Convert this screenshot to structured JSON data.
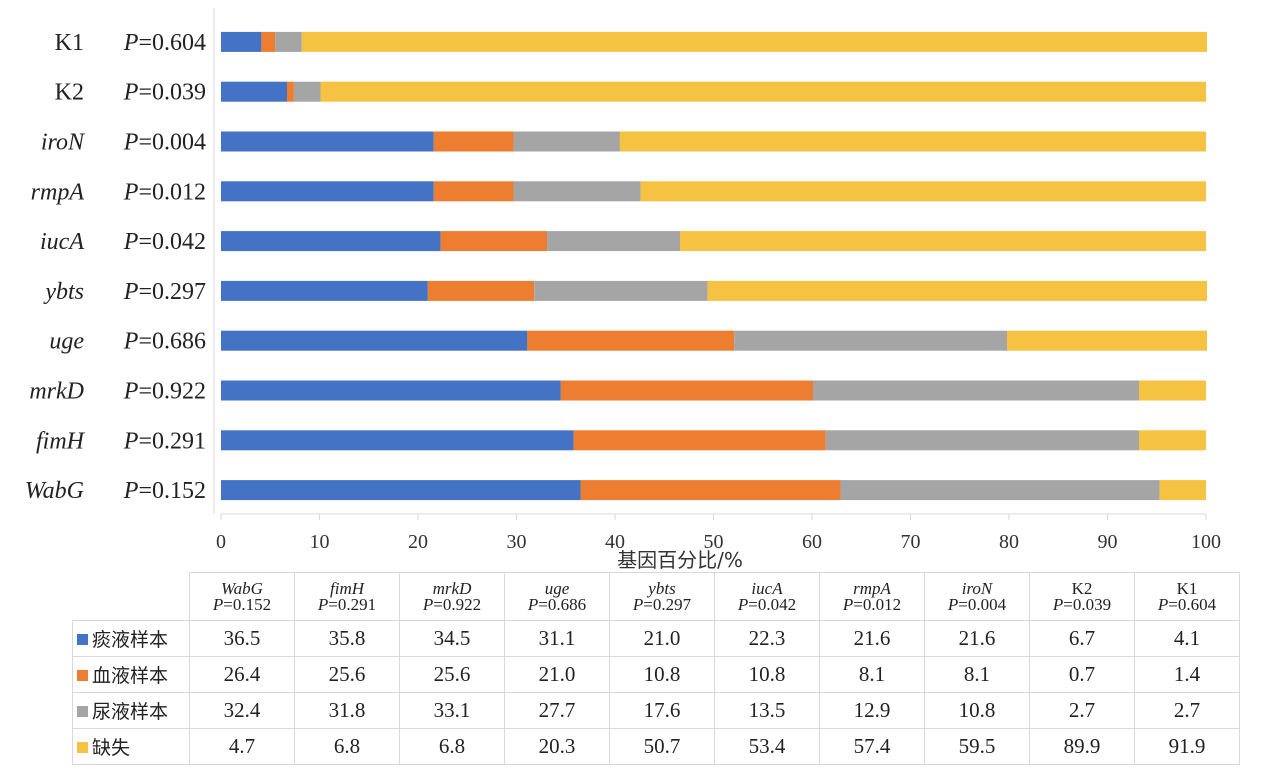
{
  "chart_data": {
    "type": "bar",
    "orientation": "horizontal",
    "stacked": true,
    "xlabel": "基因百分比/%",
    "xlim": [
      0,
      100
    ],
    "xticks": [
      0,
      10,
      20,
      30,
      40,
      50,
      60,
      70,
      80,
      90,
      100
    ],
    "categories": [
      {
        "gene": "K1",
        "italic": false,
        "p": "=0.604"
      },
      {
        "gene": "K2",
        "italic": false,
        "p": "=0.039"
      },
      {
        "gene": "iroN",
        "italic": true,
        "p": "=0.004"
      },
      {
        "gene": "rmpA",
        "italic": true,
        "p": "=0.012"
      },
      {
        "gene": "iucA",
        "italic": true,
        "p": "=0.042"
      },
      {
        "gene": "ybts",
        "italic": true,
        "p": "=0.297"
      },
      {
        "gene": "uge",
        "italic": true,
        "p": "=0.686"
      },
      {
        "gene": "mrkD",
        "italic": true,
        "p": "=0.922"
      },
      {
        "gene": "fimH",
        "italic": true,
        "p": "=0.291"
      },
      {
        "gene": "WabG",
        "italic": true,
        "p": "=0.152"
      }
    ],
    "p_prefix": "P",
    "series": [
      {
        "name": "痰液样本",
        "color": "#4472c4",
        "values": [
          4.1,
          6.7,
          21.6,
          21.6,
          22.3,
          21.0,
          31.1,
          34.5,
          35.8,
          36.5
        ]
      },
      {
        "name": "血液样本",
        "color": "#ed7d31",
        "values": [
          1.4,
          0.7,
          8.1,
          8.1,
          10.8,
          10.8,
          21.0,
          25.6,
          25.6,
          26.4
        ]
      },
      {
        "name": "尿液样本",
        "color": "#a5a5a5",
        "values": [
          2.7,
          2.7,
          10.8,
          12.9,
          13.5,
          17.6,
          27.7,
          33.1,
          31.8,
          32.4
        ]
      },
      {
        "name": "缺失",
        "color": "#f5c242",
        "values": [
          91.9,
          89.9,
          59.5,
          57.4,
          53.4,
          50.7,
          20.3,
          6.8,
          6.8,
          4.7
        ]
      }
    ],
    "table": {
      "columns": [
        {
          "gene": "WabG",
          "italic": true,
          "p": "=0.152"
        },
        {
          "gene": "fimH",
          "italic": true,
          "p": "=0.291"
        },
        {
          "gene": "mrkD",
          "italic": true,
          "p": "=0.922"
        },
        {
          "gene": "uge",
          "italic": true,
          "p": "=0.686"
        },
        {
          "gene": "ybts",
          "italic": true,
          "p": "=0.297"
        },
        {
          "gene": "iucA",
          "italic": true,
          "p": "=0.042"
        },
        {
          "gene": "rmpA",
          "italic": true,
          "p": "=0.012"
        },
        {
          "gene": "iroN",
          "italic": true,
          "p": "=0.004"
        },
        {
          "gene": "K2",
          "italic": false,
          "p": "=0.039"
        },
        {
          "gene": "K1",
          "italic": false,
          "p": "=0.604"
        }
      ],
      "rows": [
        {
          "label": "痰液样本",
          "color": "#4472c4",
          "values": [
            "36.5",
            "35.8",
            "34.5",
            "31.1",
            "21.0",
            "22.3",
            "21.6",
            "21.6",
            "6.7",
            "4.1"
          ]
        },
        {
          "label": "血液样本",
          "color": "#ed7d31",
          "values": [
            "26.4",
            "25.6",
            "25.6",
            "21.0",
            "10.8",
            "10.8",
            "8.1",
            "8.1",
            "0.7",
            "1.4"
          ]
        },
        {
          "label": "尿液样本",
          "color": "#a5a5a5",
          "values": [
            "32.4",
            "31.8",
            "33.1",
            "27.7",
            "17.6",
            "13.5",
            "12.9",
            "10.8",
            "2.7",
            "2.7"
          ]
        },
        {
          "label": "缺失",
          "color": "#f5c242",
          "values": [
            "4.7",
            "6.8",
            "6.8",
            "20.3",
            "50.7",
            "53.4",
            "57.4",
            "59.5",
            "89.9",
            "91.9"
          ]
        }
      ]
    },
    "grid": false,
    "legend": "in-table"
  }
}
